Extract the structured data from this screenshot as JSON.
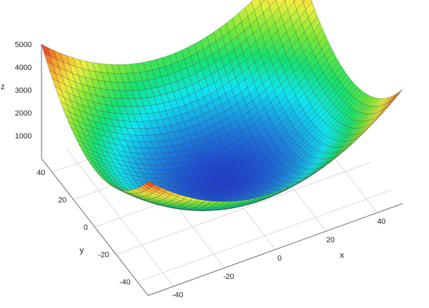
{
  "chart_data": {
    "type": "surface",
    "function": "z = x^2 + y^2",
    "x": {
      "label": "x",
      "range": [
        -50,
        50
      ],
      "ticks": [
        -40,
        -20,
        0,
        20,
        40
      ]
    },
    "y": {
      "label": "y",
      "range": [
        -50,
        50
      ],
      "ticks": [
        -40,
        -20,
        0,
        20,
        40
      ]
    },
    "z": {
      "label": "z",
      "range": [
        0,
        5000
      ],
      "ticks": [
        1000,
        2000,
        3000,
        4000,
        5000
      ]
    },
    "grid_resolution": 41,
    "colormap": [
      "#1f3fd0",
      "#1b8fe0",
      "#10e6f0",
      "#16e070",
      "#7be838",
      "#f0f040",
      "#f5a030",
      "#e82a20"
    ],
    "gridlines": true,
    "wireframe_color": "#333333"
  }
}
